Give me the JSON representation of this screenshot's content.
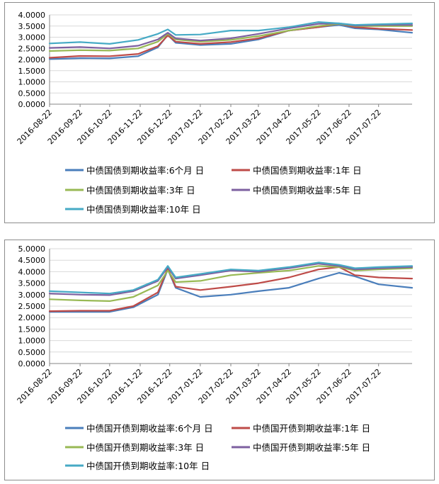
{
  "chart_data": [
    {
      "type": "line",
      "title": "",
      "xlabel": "",
      "ylabel": "",
      "ylim": [
        0,
        4
      ],
      "yticks": [
        "0.0000",
        "0.5000",
        "1.0000",
        "1.5000",
        "2.0000",
        "2.5000",
        "3.0000",
        "3.5000",
        "4.0000"
      ],
      "categories": [
        "2016-08-22",
        "2016-09-22",
        "2016-10-22",
        "2016-11-22",
        "2016-12-22",
        "2017-01-22",
        "2017-02-22",
        "2017-03-22",
        "2017-04-22",
        "2017-05-22",
        "2017-06-22",
        "2017-07-22"
      ],
      "x_end": "2017-08-25",
      "grid": true,
      "legend_position": "bottom",
      "series": [
        {
          "name": "中债国债到期收益率:6个月 日",
          "color": "#4a7ebb",
          "points": [
            [
              "2016-08-22",
              2.02
            ],
            [
              "2016-09-22",
              2.06
            ],
            [
              "2016-10-22",
              2.05
            ],
            [
              "2016-11-20",
              2.15
            ],
            [
              "2016-12-10",
              2.55
            ],
            [
              "2016-12-20",
              3.1
            ],
            [
              "2016-12-28",
              2.75
            ],
            [
              "2017-01-22",
              2.65
            ],
            [
              "2017-02-22",
              2.7
            ],
            [
              "2017-03-22",
              2.9
            ],
            [
              "2017-04-22",
              3.3
            ],
            [
              "2017-05-22",
              3.45
            ],
            [
              "2017-06-12",
              3.55
            ],
            [
              "2017-06-28",
              3.4
            ],
            [
              "2017-07-22",
              3.35
            ],
            [
              "2017-08-25",
              3.2
            ]
          ]
        },
        {
          "name": "中债国债到期收益率:1年 日",
          "color": "#be4b48",
          "points": [
            [
              "2016-08-22",
              2.08
            ],
            [
              "2016-09-22",
              2.16
            ],
            [
              "2016-10-22",
              2.15
            ],
            [
              "2016-11-20",
              2.25
            ],
            [
              "2016-12-10",
              2.6
            ],
            [
              "2016-12-20",
              3.08
            ],
            [
              "2016-12-28",
              2.8
            ],
            [
              "2017-01-22",
              2.7
            ],
            [
              "2017-02-22",
              2.78
            ],
            [
              "2017-03-22",
              2.95
            ],
            [
              "2017-04-22",
              3.3
            ],
            [
              "2017-05-22",
              3.45
            ],
            [
              "2017-06-12",
              3.6
            ],
            [
              "2017-06-28",
              3.45
            ],
            [
              "2017-07-22",
              3.38
            ],
            [
              "2017-08-25",
              3.32
            ]
          ]
        },
        {
          "name": "中债国债到期收益率:3年 日",
          "color": "#98b954",
          "points": [
            [
              "2016-08-22",
              2.38
            ],
            [
              "2016-09-22",
              2.42
            ],
            [
              "2016-10-22",
              2.4
            ],
            [
              "2016-11-20",
              2.5
            ],
            [
              "2016-12-10",
              2.8
            ],
            [
              "2016-12-20",
              3.15
            ],
            [
              "2016-12-28",
              2.9
            ],
            [
              "2017-01-22",
              2.8
            ],
            [
              "2017-02-22",
              2.88
            ],
            [
              "2017-03-22",
              3.05
            ],
            [
              "2017-04-22",
              3.3
            ],
            [
              "2017-05-22",
              3.5
            ],
            [
              "2017-06-12",
              3.6
            ],
            [
              "2017-06-28",
              3.5
            ],
            [
              "2017-07-22",
              3.5
            ],
            [
              "2017-08-25",
              3.5
            ]
          ]
        },
        {
          "name": "中债国债到期收益率:5年 日",
          "color": "#7d60a0",
          "points": [
            [
              "2016-08-22",
              2.52
            ],
            [
              "2016-09-22",
              2.56
            ],
            [
              "2016-10-22",
              2.5
            ],
            [
              "2016-11-20",
              2.62
            ],
            [
              "2016-12-10",
              2.9
            ],
            [
              "2016-12-20",
              3.2
            ],
            [
              "2016-12-28",
              2.95
            ],
            [
              "2017-01-22",
              2.85
            ],
            [
              "2017-02-22",
              2.95
            ],
            [
              "2017-03-22",
              3.15
            ],
            [
              "2017-04-22",
              3.4
            ],
            [
              "2017-05-22",
              3.6
            ],
            [
              "2017-06-12",
              3.62
            ],
            [
              "2017-06-28",
              3.52
            ],
            [
              "2017-07-22",
              3.55
            ],
            [
              "2017-08-25",
              3.55
            ]
          ]
        },
        {
          "name": "中债国债到期收益率:10年 日",
          "color": "#46aac5",
          "points": [
            [
              "2016-08-22",
              2.72
            ],
            [
              "2016-09-22",
              2.78
            ],
            [
              "2016-10-22",
              2.7
            ],
            [
              "2016-11-20",
              2.88
            ],
            [
              "2016-12-10",
              3.15
            ],
            [
              "2016-12-20",
              3.35
            ],
            [
              "2016-12-28",
              3.1
            ],
            [
              "2017-01-22",
              3.12
            ],
            [
              "2017-02-22",
              3.3
            ],
            [
              "2017-03-22",
              3.3
            ],
            [
              "2017-04-22",
              3.45
            ],
            [
              "2017-05-22",
              3.68
            ],
            [
              "2017-06-12",
              3.62
            ],
            [
              "2017-06-28",
              3.55
            ],
            [
              "2017-07-22",
              3.58
            ],
            [
              "2017-08-25",
              3.62
            ]
          ]
        }
      ]
    },
    {
      "type": "line",
      "title": "",
      "xlabel": "",
      "ylabel": "",
      "ylim": [
        0,
        5
      ],
      "yticks": [
        "0.0000",
        "0.5000",
        "1.0000",
        "1.5000",
        "2.0000",
        "2.5000",
        "3.0000",
        "3.5000",
        "4.0000",
        "4.5000",
        "5.0000"
      ],
      "categories": [
        "2016-08-22",
        "2016-09-22",
        "2016-10-22",
        "2016-11-22",
        "2016-12-22",
        "2017-01-22",
        "2017-02-22",
        "2017-03-22",
        "2017-04-22",
        "2017-05-22",
        "2017-06-22",
        "2017-07-22"
      ],
      "x_end": "2017-08-25",
      "grid": true,
      "legend_position": "bottom",
      "series": [
        {
          "name": "中债国开债到期收益率:6个月 日",
          "color": "#4a7ebb",
          "points": [
            [
              "2016-08-22",
              2.25
            ],
            [
              "2016-09-22",
              2.25
            ],
            [
              "2016-10-22",
              2.25
            ],
            [
              "2016-11-15",
              2.45
            ],
            [
              "2016-12-10",
              3.0
            ],
            [
              "2016-12-20",
              4.1
            ],
            [
              "2016-12-28",
              3.3
            ],
            [
              "2017-01-22",
              2.9
            ],
            [
              "2017-02-22",
              3.0
            ],
            [
              "2017-03-22",
              3.15
            ],
            [
              "2017-04-22",
              3.3
            ],
            [
              "2017-05-22",
              3.7
            ],
            [
              "2017-06-12",
              3.95
            ],
            [
              "2017-06-28",
              3.8
            ],
            [
              "2017-07-22",
              3.45
            ],
            [
              "2017-08-25",
              3.3
            ]
          ]
        },
        {
          "name": "中债国开债到期收益率:1年 日",
          "color": "#be4b48",
          "points": [
            [
              "2016-08-22",
              2.28
            ],
            [
              "2016-09-22",
              2.3
            ],
            [
              "2016-10-22",
              2.3
            ],
            [
              "2016-11-15",
              2.5
            ],
            [
              "2016-12-10",
              3.1
            ],
            [
              "2016-12-20",
              4.15
            ],
            [
              "2016-12-28",
              3.35
            ],
            [
              "2017-01-22",
              3.2
            ],
            [
              "2017-02-22",
              3.35
            ],
            [
              "2017-03-22",
              3.5
            ],
            [
              "2017-04-22",
              3.75
            ],
            [
              "2017-05-22",
              4.1
            ],
            [
              "2017-06-12",
              4.2
            ],
            [
              "2017-06-28",
              3.85
            ],
            [
              "2017-07-22",
              3.75
            ],
            [
              "2017-08-25",
              3.7
            ]
          ]
        },
        {
          "name": "中债国开债到期收益率:3年 日",
          "color": "#98b954",
          "points": [
            [
              "2016-08-22",
              2.8
            ],
            [
              "2016-09-22",
              2.75
            ],
            [
              "2016-10-22",
              2.72
            ],
            [
              "2016-11-15",
              2.9
            ],
            [
              "2016-12-10",
              3.4
            ],
            [
              "2016-12-20",
              4.05
            ],
            [
              "2016-12-28",
              3.55
            ],
            [
              "2017-01-22",
              3.6
            ],
            [
              "2017-02-22",
              3.85
            ],
            [
              "2017-03-22",
              3.95
            ],
            [
              "2017-04-22",
              4.05
            ],
            [
              "2017-05-22",
              4.25
            ],
            [
              "2017-06-12",
              4.2
            ],
            [
              "2017-06-28",
              4.05
            ],
            [
              "2017-07-22",
              4.1
            ],
            [
              "2017-08-25",
              4.15
            ]
          ]
        },
        {
          "name": "中债国开债到期收益率:5年 日",
          "color": "#7d60a0",
          "points": [
            [
              "2016-08-22",
              3.05
            ],
            [
              "2016-09-22",
              3.0
            ],
            [
              "2016-10-22",
              2.98
            ],
            [
              "2016-11-15",
              3.15
            ],
            [
              "2016-12-10",
              3.6
            ],
            [
              "2016-12-20",
              4.2
            ],
            [
              "2016-12-28",
              3.7
            ],
            [
              "2017-01-22",
              3.85
            ],
            [
              "2017-02-22",
              4.05
            ],
            [
              "2017-03-22",
              4.0
            ],
            [
              "2017-04-22",
              4.15
            ],
            [
              "2017-05-22",
              4.35
            ],
            [
              "2017-06-12",
              4.25
            ],
            [
              "2017-06-28",
              4.1
            ],
            [
              "2017-07-22",
              4.15
            ],
            [
              "2017-08-25",
              4.2
            ]
          ]
        },
        {
          "name": "中债国开债到期收益率:10年 日",
          "color": "#46aac5",
          "points": [
            [
              "2016-08-22",
              3.15
            ],
            [
              "2016-09-22",
              3.1
            ],
            [
              "2016-10-22",
              3.05
            ],
            [
              "2016-11-15",
              3.2
            ],
            [
              "2016-12-10",
              3.65
            ],
            [
              "2016-12-20",
              4.25
            ],
            [
              "2016-12-28",
              3.75
            ],
            [
              "2017-01-22",
              3.9
            ],
            [
              "2017-02-22",
              4.1
            ],
            [
              "2017-03-22",
              4.05
            ],
            [
              "2017-04-22",
              4.2
            ],
            [
              "2017-05-22",
              4.4
            ],
            [
              "2017-06-12",
              4.3
            ],
            [
              "2017-06-28",
              4.15
            ],
            [
              "2017-07-22",
              4.2
            ],
            [
              "2017-08-25",
              4.25
            ]
          ]
        }
      ]
    }
  ]
}
